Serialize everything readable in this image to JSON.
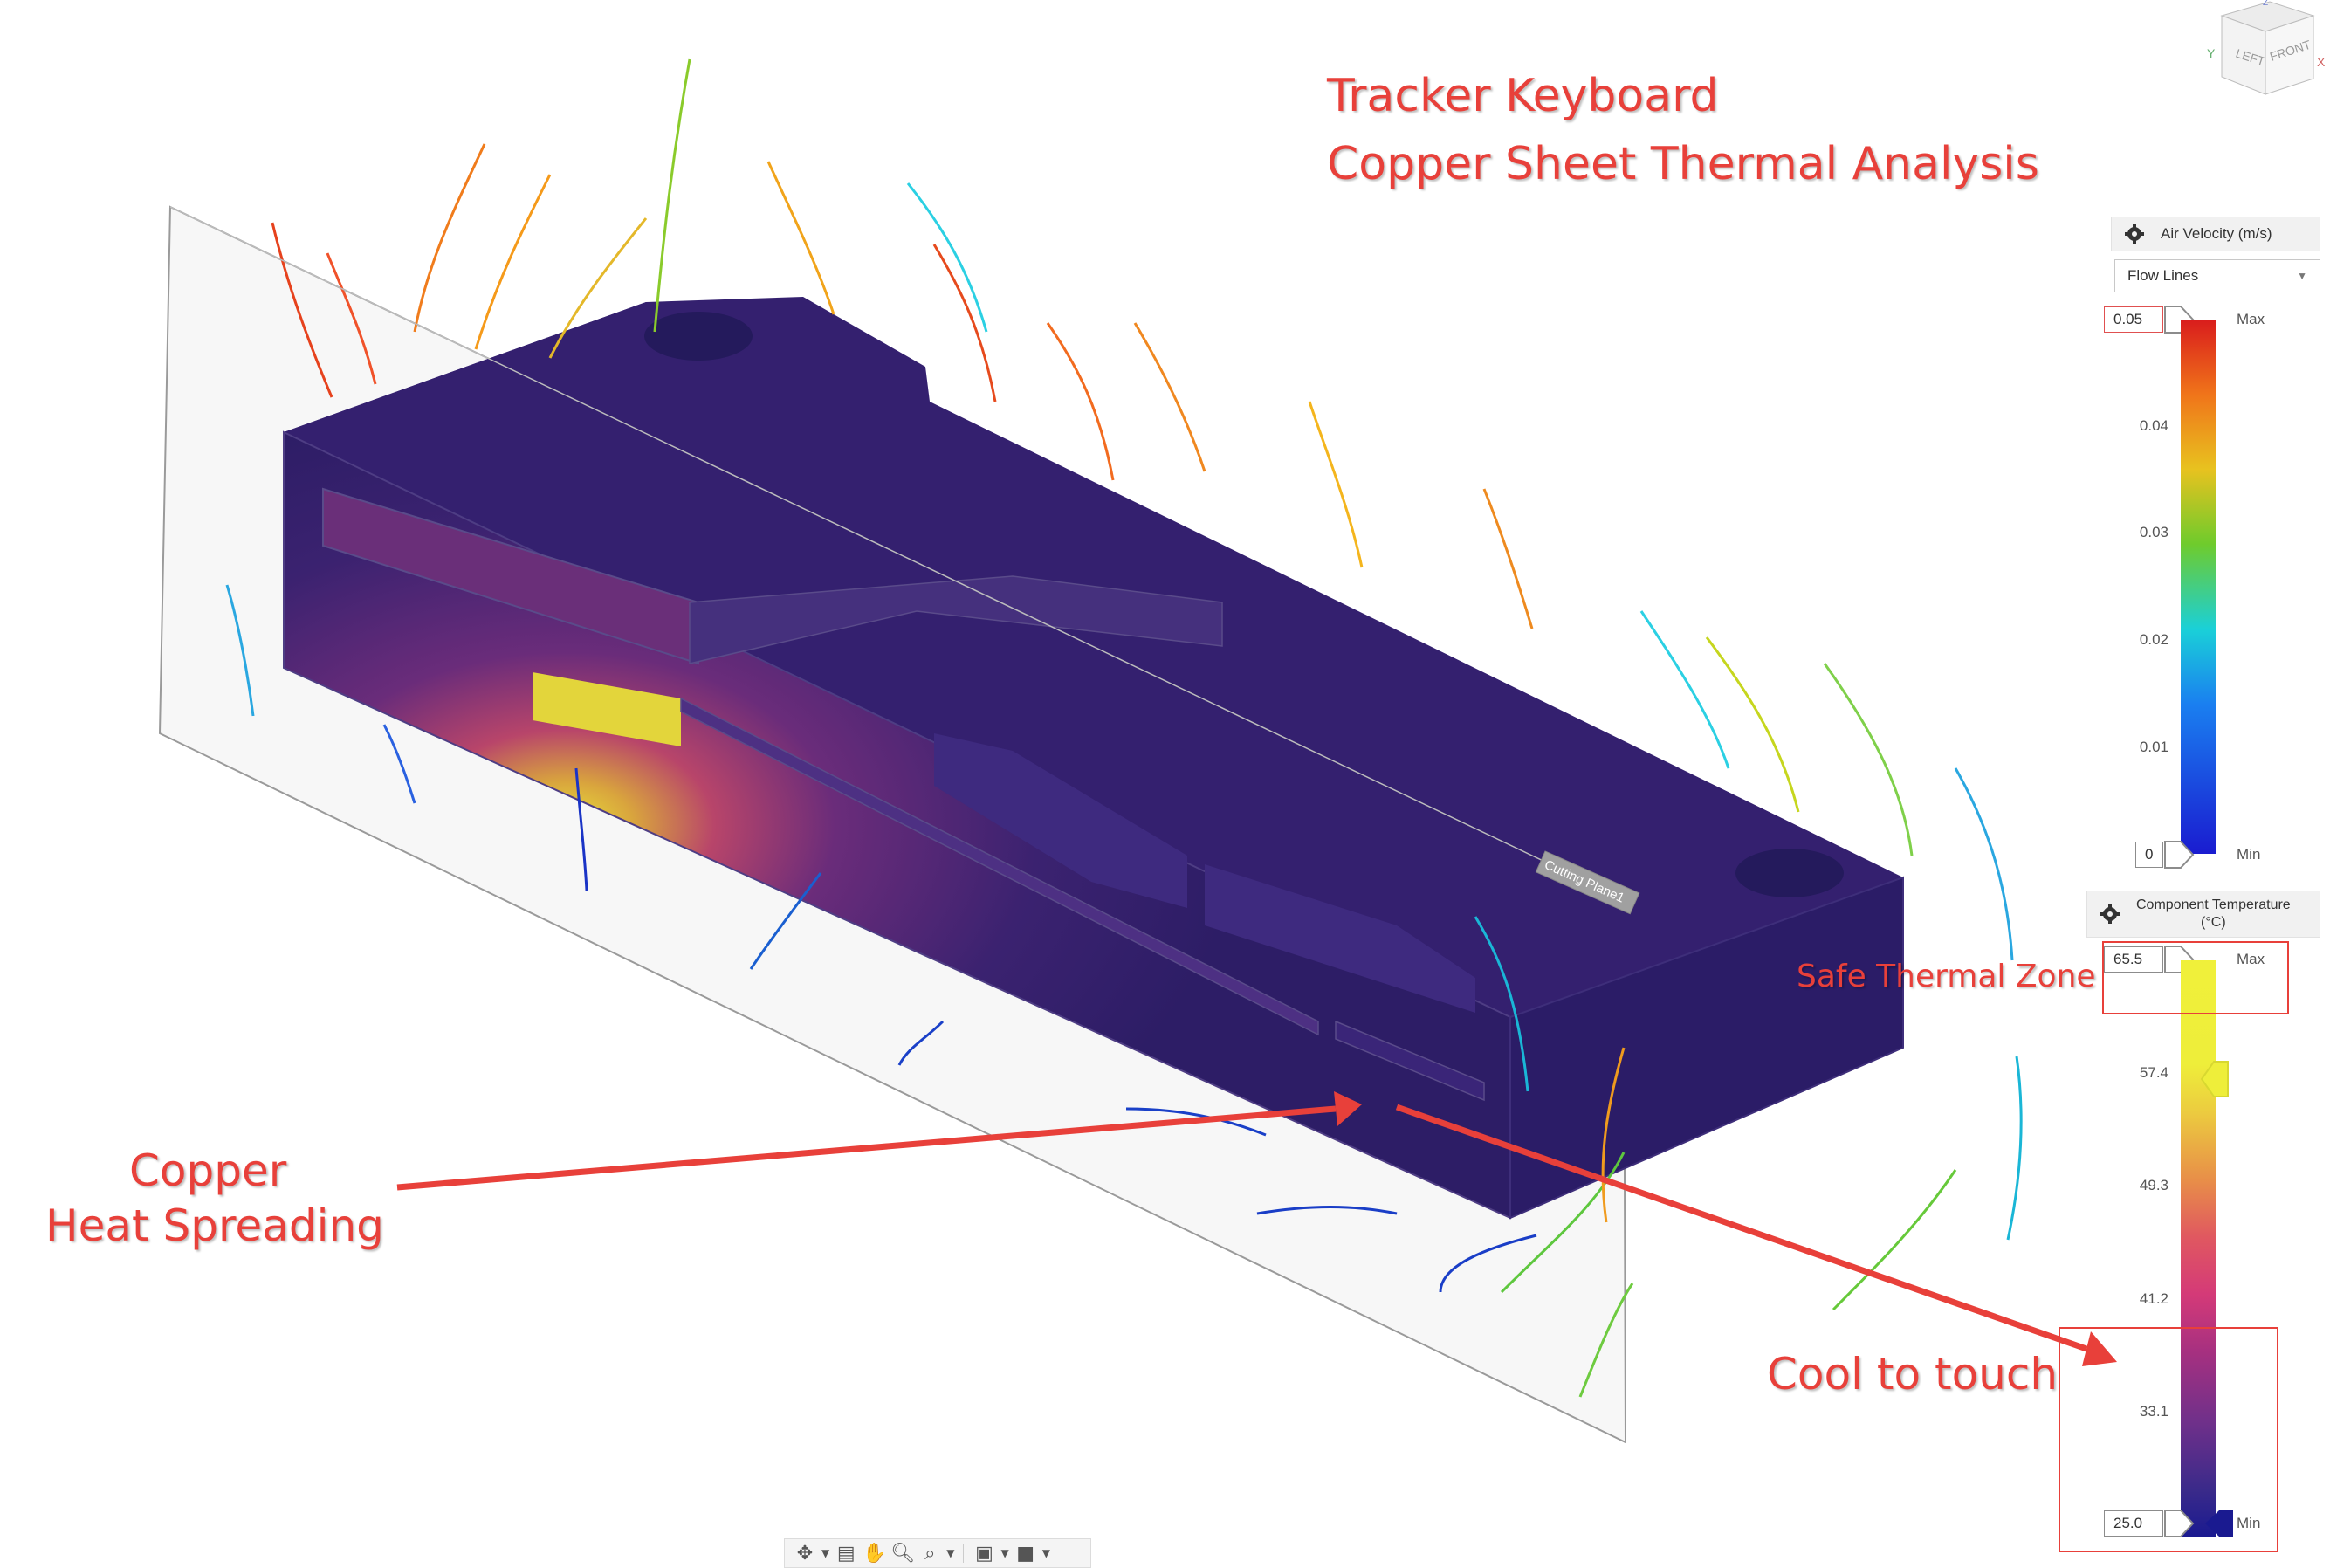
{
  "title": {
    "line1": "Tracker Keyboard",
    "line2": "Copper Sheet Thermal Analysis"
  },
  "viewcube": {
    "face_left": "LEFT",
    "face_front": "FRONT",
    "axis_x": "X",
    "axis_y": "Y",
    "axis_z": "Z"
  },
  "cutting_plane_label": "Cutting Plane1",
  "annotations": {
    "copper_line1": "Copper",
    "copper_line2": "Heat Spreading",
    "cool": "Cool to touch",
    "safe": "Safe Thermal Zone"
  },
  "velocity_legend": {
    "title": "Air Velocity (m/s)",
    "mode": "Flow Lines",
    "max_value": "0.05",
    "min_value": "0",
    "max_label": "Max",
    "min_label": "Min",
    "ticks": [
      "0.04",
      "0.03",
      "0.02",
      "0.01"
    ]
  },
  "temperature_legend": {
    "title_line1": "Component Temperature",
    "title_line2": "(°C)",
    "max_value": "65.5",
    "min_value": "25.0",
    "max_label": "Max",
    "min_label": "Min",
    "ticks": [
      "57.4",
      "49.3",
      "41.2",
      "33.1"
    ]
  },
  "colors": {
    "annotation_red": "#e8403a",
    "model_body": "#35206b",
    "hot_spot": "#e8e63a",
    "legend_bg": "#f1f1f1"
  },
  "toolbar": {
    "orbit_icon": "orbit-icon",
    "pan_icon": "pan-icon",
    "zoom_icon": "zoom-icon",
    "display_icon": "display-icon"
  }
}
